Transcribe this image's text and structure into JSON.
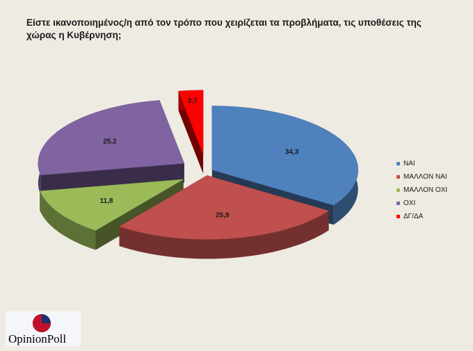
{
  "title": "Είστε ικανοποιημένος/η από τον τρόπο που χειρίζεται τα προβλήματα, τις υποθέσεις  της χώρας η Κυβέρνηση;",
  "chart_data": {
    "type": "pie",
    "style": "3d-exploded",
    "title": "Είστε ικανοποιημένος/η από τον τρόπο που χειρίζεται τα προβλήματα, τις υποθέσεις  της χώρας η Κυβέρνηση;",
    "legend_position": "right",
    "slices": [
      {
        "label": "ΝΑΙ",
        "value": 34.3,
        "value_label": "34,3",
        "color": "#4f81bd"
      },
      {
        "label": "ΜΑΛΛΟΝ ΝΑΙ",
        "value": 25.9,
        "value_label": "25,9",
        "color": "#c0504d"
      },
      {
        "label": "ΜΑΛΛΟΝ ΟΧΙ",
        "value": 11.8,
        "value_label": "11,8",
        "color": "#9bbb59"
      },
      {
        "label": "ΟΧΙ",
        "value": 25.2,
        "value_label": "25,2",
        "color": "#8064a2"
      },
      {
        "label": "ΔΓ/ΔΑ",
        "value": 2.7,
        "value_label": "2,7",
        "color": "#ff0000"
      }
    ]
  },
  "logo": {
    "text": "OpinionPoll",
    "colors": [
      "#c0102a",
      "#1f2e6e"
    ]
  }
}
